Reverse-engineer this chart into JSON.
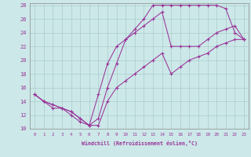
{
  "xlabel": "Windchill (Refroidissement éolien,°C)",
  "bg_color": "#cce8e8",
  "line_color": "#993399",
  "grid_color": "#aacccc",
  "xmin": 0,
  "xmax": 23,
  "ymin": 10,
  "ymax": 28,
  "curves": [
    [
      15,
      14,
      13,
      13,
      12,
      11,
      10.5,
      11.5,
      16,
      19.5,
      23,
      24.5,
      26,
      28,
      28,
      28,
      28,
      28,
      28,
      28,
      28,
      27.5,
      24,
      23
    ],
    [
      15,
      14,
      13.5,
      13,
      12.5,
      11.5,
      10.5,
      15,
      19.5,
      22,
      23,
      24,
      25,
      26,
      27,
      22,
      22,
      22,
      22,
      23,
      24,
      24.5,
      25,
      23
    ],
    [
      15,
      14,
      13.5,
      13,
      12.5,
      11.5,
      10.5,
      10.5,
      14,
      16,
      17,
      18,
      19,
      20,
      21,
      18,
      19,
      20,
      20.5,
      21,
      22,
      22.5,
      23,
      23
    ]
  ]
}
